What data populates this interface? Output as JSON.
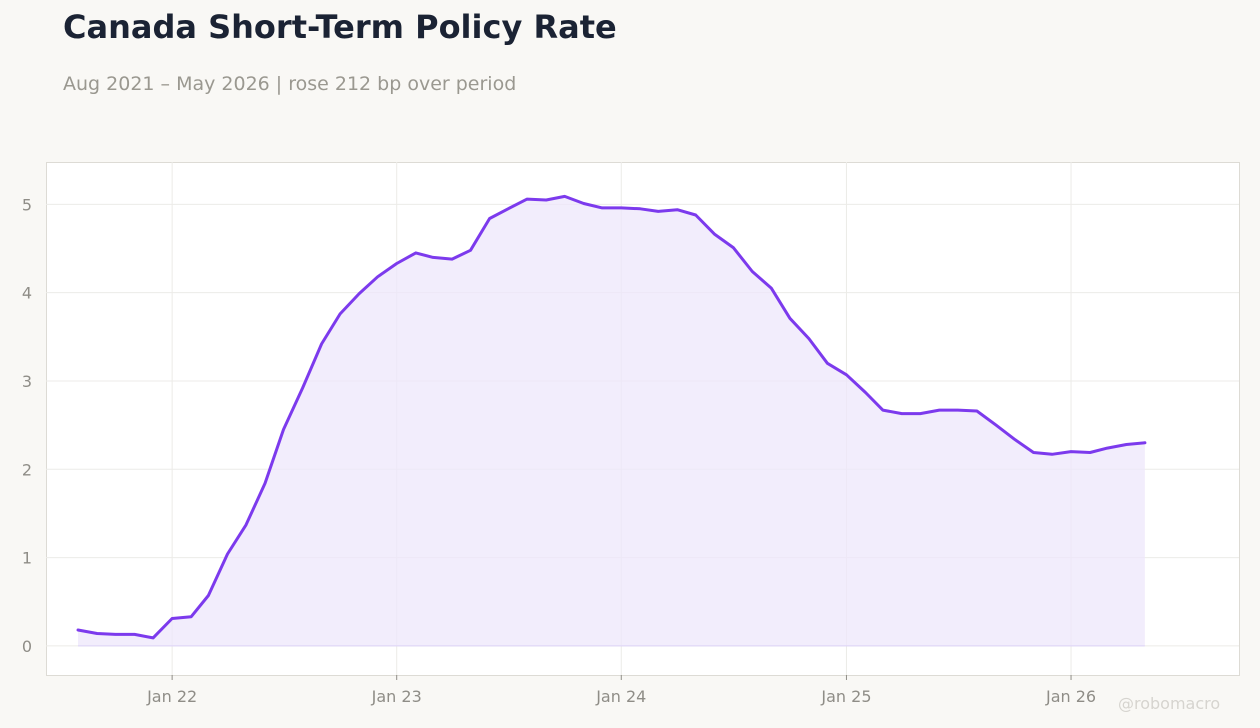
{
  "title": "Canada Short-Term Policy Rate",
  "subtitle": "Aug 2021 – May 2026 | rose 212 bp over period",
  "watermark": "@robomacro",
  "colors": {
    "line": "#7c3aed",
    "fill": "#ede7fb",
    "background": "#f9f8f5",
    "plot_background": "#ffffff",
    "grid": "#ecebe8",
    "tick_text": "#8f8d87"
  },
  "chart_data": {
    "type": "area",
    "title": "Canada Short-Term Policy Rate",
    "subtitle": "Aug 2021 – May 2026 | rose 212 bp over period",
    "xlabel": "",
    "ylabel": "",
    "xlim": [
      "2021-06-10",
      "2026-10-01"
    ],
    "ylim": [
      -0.33,
      5.48
    ],
    "yticks": [
      0,
      1,
      2,
      3,
      4,
      5
    ],
    "xticks": [
      {
        "date": "2022-01-01",
        "label": "Jan 22"
      },
      {
        "date": "2023-01-01",
        "label": "Jan 23"
      },
      {
        "date": "2024-01-01",
        "label": "Jan 24"
      },
      {
        "date": "2025-01-01",
        "label": "Jan 25"
      },
      {
        "date": "2026-01-01",
        "label": "Jan 26"
      }
    ],
    "grid": true,
    "series": [
      {
        "x": [
          "2021-08-01",
          "2021-09-01",
          "2021-10-01",
          "2021-11-01",
          "2021-12-01",
          "2022-01-01",
          "2022-02-01",
          "2022-03-01",
          "2022-04-01",
          "2022-05-01",
          "2022-06-01",
          "2022-07-01",
          "2022-08-01",
          "2022-09-01",
          "2022-10-01",
          "2022-11-01",
          "2022-12-01",
          "2023-01-01",
          "2023-02-01",
          "2023-03-01",
          "2023-04-01",
          "2023-05-01",
          "2023-06-01",
          "2023-07-01",
          "2023-08-01",
          "2023-09-01",
          "2023-10-01",
          "2023-11-01",
          "2023-12-01",
          "2024-01-01",
          "2024-02-01",
          "2024-03-01",
          "2024-04-01",
          "2024-05-01",
          "2024-06-01",
          "2024-07-01",
          "2024-08-01",
          "2024-09-01",
          "2024-10-01",
          "2024-11-01",
          "2024-12-01",
          "2025-01-01",
          "2025-02-01",
          "2025-03-01",
          "2025-04-01",
          "2025-05-01",
          "2025-06-01",
          "2025-07-01",
          "2025-08-01",
          "2025-09-01",
          "2025-10-01",
          "2025-11-01",
          "2025-12-01",
          "2026-01-01",
          "2026-02-01",
          "2026-03-01",
          "2026-04-01",
          "2026-05-01"
        ],
        "values": [
          0.18,
          0.14,
          0.13,
          0.13,
          0.09,
          0.31,
          0.33,
          0.57,
          1.04,
          1.37,
          1.84,
          2.45,
          2.92,
          3.42,
          3.76,
          3.99,
          4.18,
          4.33,
          4.45,
          4.4,
          4.38,
          4.48,
          4.84,
          4.95,
          5.06,
          5.05,
          5.09,
          5.01,
          4.96,
          4.96,
          4.95,
          4.92,
          4.94,
          4.88,
          4.66,
          4.51,
          4.24,
          4.05,
          3.71,
          3.48,
          3.2,
          3.07,
          2.87,
          2.67,
          2.63,
          2.63,
          2.67,
          2.67,
          2.66,
          2.5,
          2.34,
          2.19,
          2.17,
          2.2,
          2.19,
          2.24,
          2.28,
          2.3
        ]
      }
    ]
  }
}
